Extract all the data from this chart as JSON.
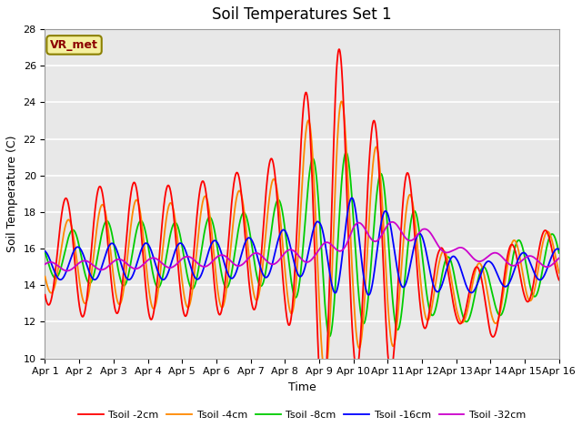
{
  "title": "Soil Temperatures Set 1",
  "xlabel": "Time",
  "ylabel": "Soil Temperature (C)",
  "xlim": [
    0,
    15
  ],
  "ylim": [
    10,
    28
  ],
  "yticks": [
    10,
    12,
    14,
    16,
    18,
    20,
    22,
    24,
    26,
    28
  ],
  "xtick_labels": [
    "Apr 1",
    "Apr 2",
    "Apr 3",
    "Apr 4",
    "Apr 5",
    "Apr 6",
    "Apr 7",
    "Apr 8",
    "Apr 9",
    "Apr 10",
    "Apr 11",
    "Apr 12",
    "Apr 13",
    "Apr 14",
    "Apr 15",
    "Apr 16"
  ],
  "annotation": "VR_met",
  "bg_color": "#e0e0e0",
  "plot_bg": "#e8e8e8",
  "grid_color": "#ffffff",
  "line_colors": [
    "#ff0000",
    "#ff8800",
    "#00cc00",
    "#0000ff",
    "#cc00cc"
  ],
  "line_labels": [
    "Tsoil -2cm",
    "Tsoil -4cm",
    "Tsoil -8cm",
    "Tsoil -16cm",
    "Tsoil -32cm"
  ],
  "title_fontsize": 12,
  "axis_fontsize": 9,
  "tick_fontsize": 8
}
